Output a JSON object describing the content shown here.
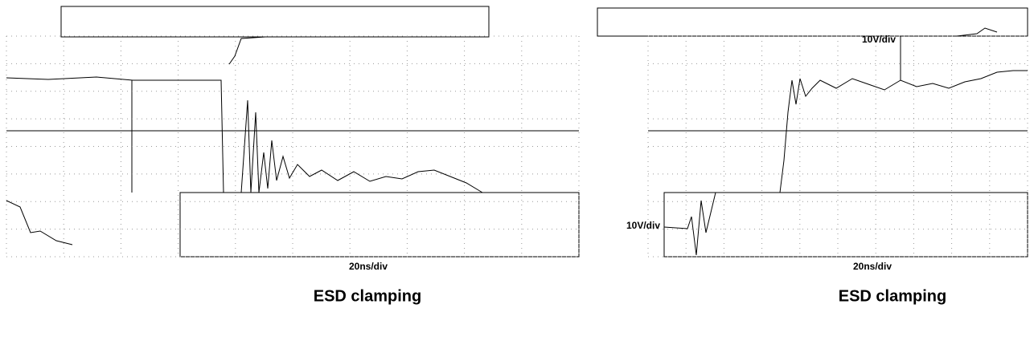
{
  "left": {
    "time_scale": "20ns/div",
    "caption": "ESD clamping"
  },
  "right": {
    "volt_labels": [
      "10V/div",
      "10V/div"
    ],
    "time_scale": "20ns/div",
    "caption": "ESD clamping"
  }
}
